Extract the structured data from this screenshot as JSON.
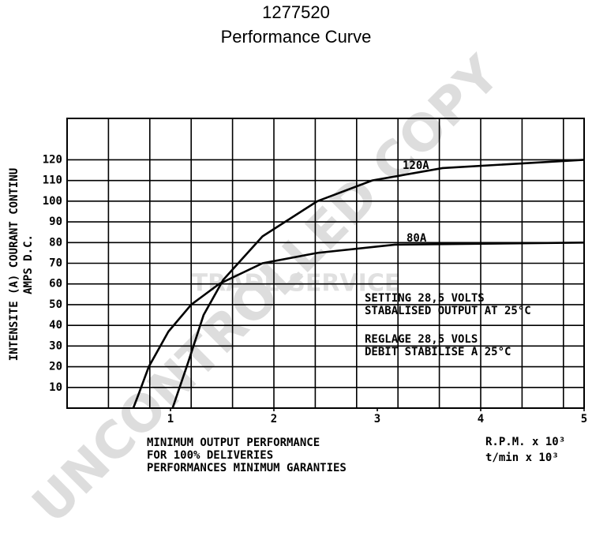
{
  "chart_data": {
    "type": "line",
    "title": "1277520",
    "subtitle": "Performance Curve",
    "y_label": "INTENSITE (A) COURANT CONTINU",
    "y_label_2": "AMPS D.C.",
    "x_label": [
      "MINIMUM OUTPUT PERFORMANCE",
      "FOR 100% DELIVERIES",
      "PERFORMANCES MINIMUM GARANTIES"
    ],
    "x_unit": [
      "R.P.M. x 10³",
      "t/min x 10³"
    ],
    "annotations": [
      "SETTING 28,5 VOLTS",
      "STABALISED OUTPUT AT 25°C",
      "REGLAGE 28,5 VOLS",
      "DEBIT STABILISE A 25°C"
    ],
    "watermarks": [
      "UNCONTROLLED COPY",
      "TRADE SERVICE"
    ],
    "xlim": [
      0,
      5
    ],
    "xticks": [
      1,
      2,
      3,
      4,
      5
    ],
    "ylim": [
      0,
      140
    ],
    "yticks": [
      10,
      20,
      30,
      40,
      50,
      60,
      70,
      80,
      90,
      100,
      110,
      120
    ],
    "grid": true,
    "series": [
      {
        "name": "120A",
        "color": "#000000",
        "x": [
          1.02,
          1.17,
          1.32,
          1.51,
          1.89,
          2.42,
          2.95,
          3.63,
          5
        ],
        "values": [
          0,
          22,
          45,
          62,
          83,
          100,
          110,
          116,
          120
        ]
      },
      {
        "name": "80A",
        "color": "#000000",
        "x": [
          0.64,
          0.69,
          0.79,
          0.98,
          1.2,
          1.47,
          1.89,
          2.42,
          3.17,
          5
        ],
        "values": [
          0,
          6.5,
          20,
          37,
          50,
          60,
          70,
          75,
          79,
          80
        ]
      }
    ]
  }
}
